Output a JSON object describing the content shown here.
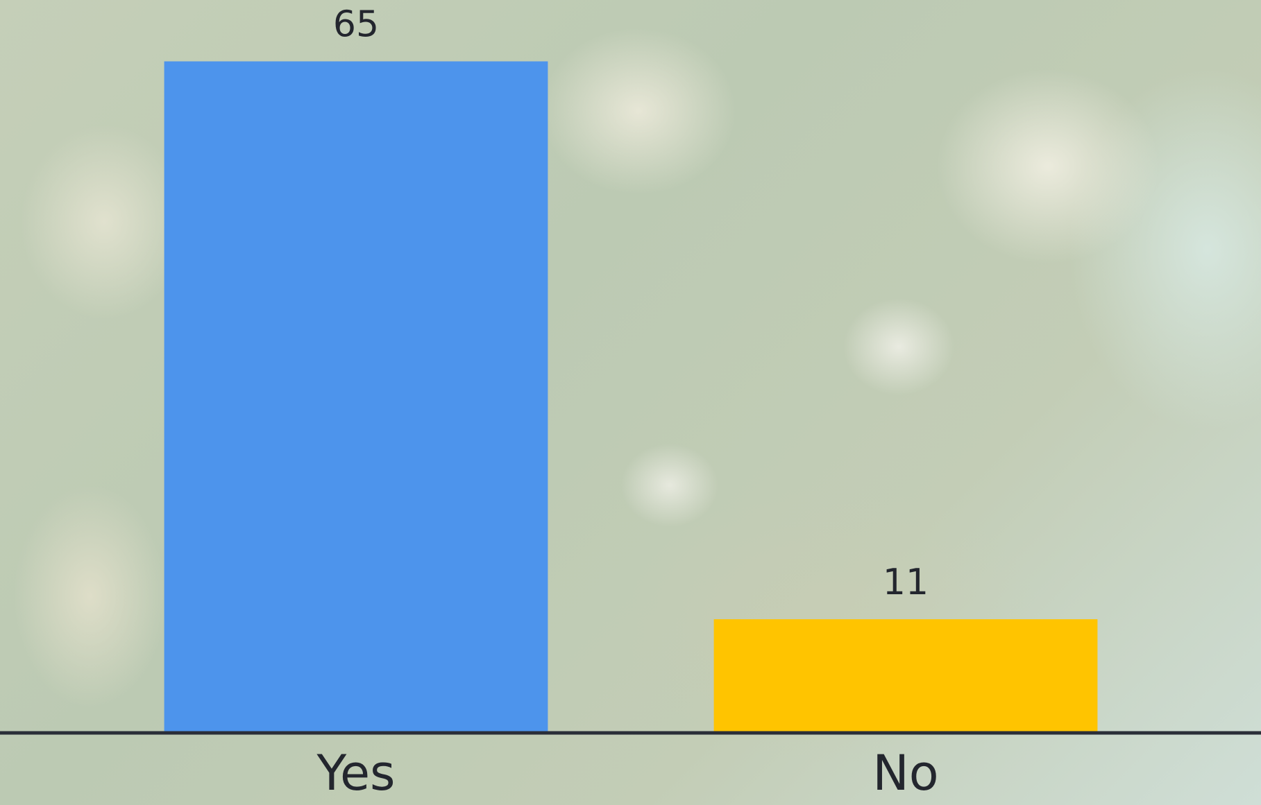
{
  "chart_data": {
    "type": "bar",
    "categories": [
      "Yes",
      "No"
    ],
    "values": [
      65,
      11
    ],
    "colors": [
      "#4d94ec",
      "#ffc400"
    ],
    "ylim": [
      0,
      70
    ]
  }
}
